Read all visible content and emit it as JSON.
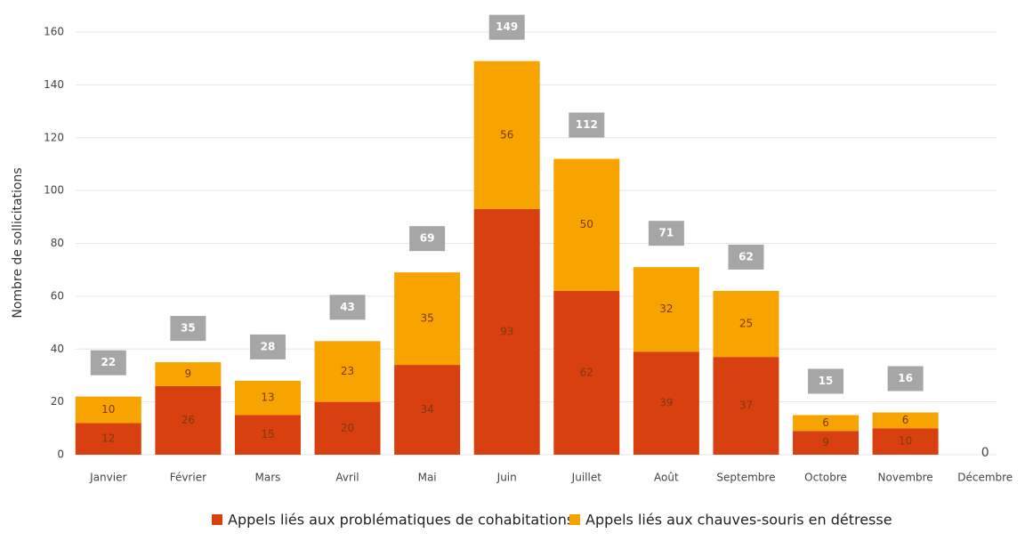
{
  "chart_data": {
    "type": "stacked_bar",
    "y_label": "Nombre de sollicitations",
    "categories": [
      "Janvier",
      "Février",
      "Mars",
      "Avril",
      "Mai",
      "Juin",
      "Juillet",
      "Août",
      "Septembre",
      "Octobre",
      "Novembre",
      "Décembre"
    ],
    "series": [
      {
        "name": "Appels liés aux problématiques de cohabitations",
        "color": "#d9400f",
        "values": [
          12,
          26,
          15,
          20,
          34,
          93,
          62,
          39,
          37,
          9,
          10,
          0
        ]
      },
      {
        "name": "Appels liés aux chauves-souris en détresse",
        "color": "#f7a400",
        "values": [
          10,
          9,
          13,
          23,
          35,
          56,
          50,
          32,
          25,
          6,
          6,
          0
        ]
      }
    ],
    "totals": [
      22,
      35,
      28,
      43,
      69,
      149,
      112,
      71,
      62,
      15,
      16,
      0
    ],
    "ylim": [
      0,
      160
    ],
    "yticks": [
      0,
      20,
      40,
      60,
      80,
      100,
      120,
      140,
      160
    ],
    "grid": true
  }
}
